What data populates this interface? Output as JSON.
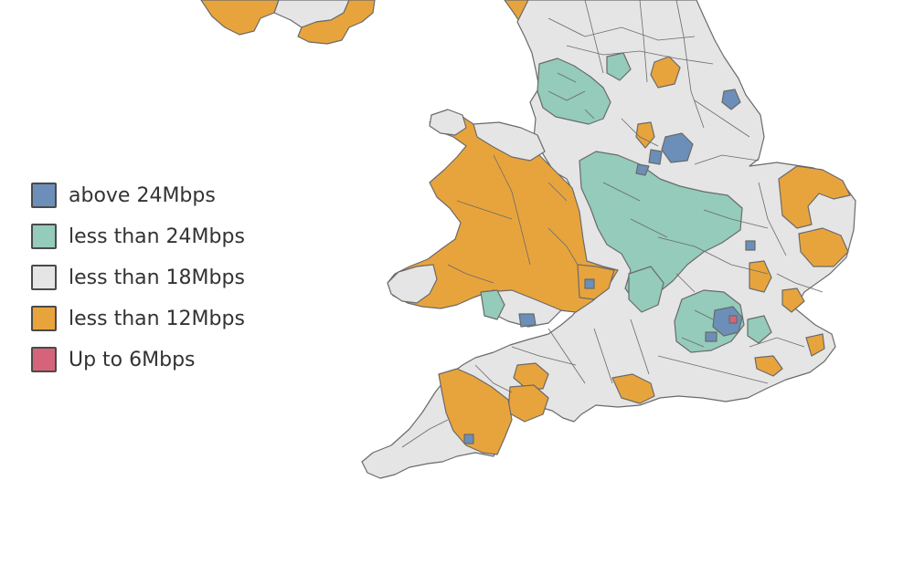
{
  "legend": {
    "items": [
      {
        "label": "above 24Mbps",
        "color": "#6b8fb8"
      },
      {
        "label": "less than 24Mbps",
        "color": "#94cbbb"
      },
      {
        "label": "less than 18Mbps",
        "color": "#e5e5e5"
      },
      {
        "label": "less than 12Mbps",
        "color": "#e8a43c"
      },
      {
        "label": "Up to 6Mbps",
        "color": "#d5647a"
      }
    ]
  },
  "map": {
    "stroke_color": "#666666"
  }
}
